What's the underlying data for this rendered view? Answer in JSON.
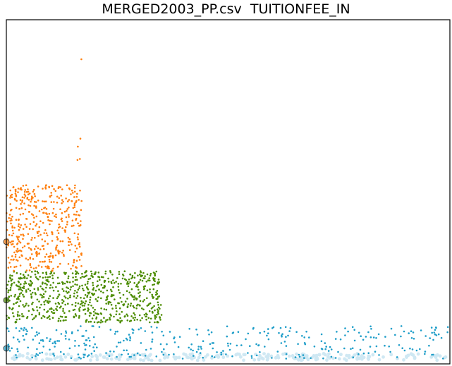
{
  "chart_data": {
    "type": "scatter",
    "title": "MERGED2003_PP.csv  TUITIONFEE_IN",
    "xlabel": "",
    "ylabel": "",
    "grid": false,
    "legend": false,
    "series": [
      {
        "color": "#1f9ec9",
        "band": [
          0.015,
          0.11
        ],
        "xrange": [
          0.0,
          1.0
        ],
        "count": 420,
        "marker_value": 0.045
      },
      {
        "color": "#4c8c00",
        "band": [
          0.12,
          0.27
        ],
        "xrange": [
          0.0,
          0.35
        ],
        "count": 700,
        "marker_value": 0.185
      },
      {
        "color": "#ff7f0e",
        "band": [
          0.27,
          0.52
        ],
        "xrange": [
          0.0,
          0.17
        ],
        "count": 420,
        "marker_value": 0.355
      },
      {
        "color": "#ff7f0e",
        "band": [
          0.53,
          0.95
        ],
        "xrange": [
          0.16,
          0.17
        ],
        "count": 5,
        "marker_value": null
      }
    ],
    "bottom_strip_color": "#cfe8f3"
  }
}
